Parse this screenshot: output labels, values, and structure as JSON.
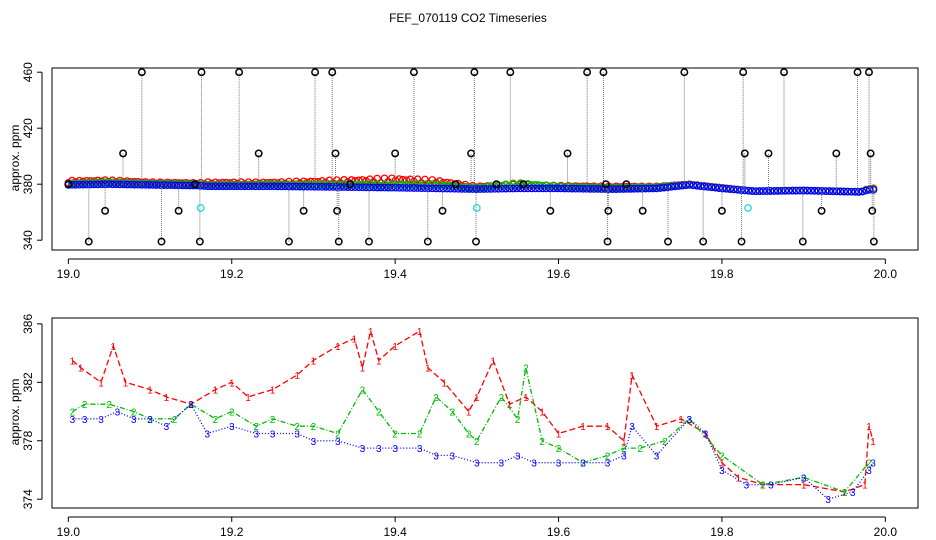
{
  "title": "FEF_070119  CO2 Timeseries",
  "colors": {
    "s1": "#ff0000",
    "s2": "#00bb00",
    "s3": "#0000ff",
    "outlier": "#000000",
    "flag": "#33dddd",
    "stem": "#777777"
  },
  "chart_data": [
    {
      "type": "scatter",
      "name": "top-panel",
      "ylabel": "approx. ppm",
      "xlim": [
        18.98,
        20.04
      ],
      "ylim": [
        333,
        463
      ],
      "xticks": [
        19.0,
        19.2,
        19.4,
        19.6,
        19.8,
        20.0
      ],
      "xtick_labels": [
        "19.0",
        "19.2",
        "19.4",
        "19.6",
        "19.8",
        "20.0"
      ],
      "yticks": [
        340,
        380,
        420,
        460
      ],
      "ytick_labels": [
        "340",
        "380",
        "420",
        "460"
      ],
      "baseline": {
        "x": [
          19.0,
          19.05,
          19.1,
          19.16,
          19.17,
          19.25,
          19.33,
          19.4,
          19.45,
          19.5,
          19.55,
          19.6,
          19.66,
          19.67,
          19.72,
          19.76,
          19.8,
          19.83,
          19.84,
          19.9,
          19.97,
          19.98
        ],
        "y3": [
          379.5,
          380,
          379.5,
          379,
          378.5,
          378.5,
          378,
          377.5,
          377,
          376.5,
          377,
          377,
          376.5,
          376.5,
          377,
          379.5,
          377,
          375.5,
          375,
          375.5,
          374.5,
          376
        ],
        "d1": [
          3,
          3,
          2,
          2,
          3,
          3,
          5,
          7,
          6,
          2,
          3,
          2,
          2,
          2,
          1.5,
          0.5,
          0.5,
          0,
          0,
          0,
          0,
          1
        ],
        "d2": [
          1,
          1.5,
          1,
          1,
          1,
          1.5,
          2,
          2.5,
          3,
          1,
          4,
          1.5,
          1,
          1,
          1,
          0.3,
          0.3,
          0,
          0,
          0,
          0,
          0.5
        ]
      },
      "outliers": {
        "x": [
          19.0,
          19.025,
          19.045,
          19.067,
          19.09,
          19.114,
          19.135,
          19.155,
          19.161,
          19.163,
          19.209,
          19.233,
          19.27,
          19.288,
          19.302,
          19.323,
          19.327,
          19.329,
          19.331,
          19.345,
          19.368,
          19.4,
          19.423,
          19.44,
          19.458,
          19.474,
          19.493,
          19.497,
          19.499,
          19.524,
          19.541,
          19.557,
          19.59,
          19.611,
          19.635,
          19.655,
          19.658,
          19.66,
          19.661,
          19.683,
          19.703,
          19.734,
          19.754,
          19.777,
          19.8,
          19.824,
          19.826,
          19.828,
          19.857,
          19.876,
          19.899,
          19.922,
          19.94,
          19.966,
          19.98,
          19.982,
          19.984,
          19.986
        ],
        "y": [
          380,
          339,
          361,
          402,
          460,
          339,
          361,
          380,
          339,
          460,
          460,
          402,
          339,
          361,
          460,
          460,
          402,
          361,
          339,
          380,
          339,
          402,
          460,
          339,
          361,
          380,
          402,
          460,
          339,
          380,
          460,
          380,
          361,
          402,
          460,
          460,
          380,
          339,
          361,
          380,
          361,
          339,
          460,
          339,
          361,
          339,
          460,
          402,
          402,
          460,
          339,
          361,
          402,
          460,
          460,
          402,
          361,
          339
        ]
      },
      "flagged": {
        "x": [
          19.162,
          19.5,
          19.832
        ],
        "y": [
          363,
          363,
          363
        ]
      }
    },
    {
      "type": "line",
      "name": "bottom-panel",
      "ylabel": "approx. ppm",
      "xlim": [
        18.98,
        20.04
      ],
      "ylim": [
        373.4,
        386.4
      ],
      "xticks": [
        19.0,
        19.2,
        19.4,
        19.6,
        19.8,
        20.0
      ],
      "xtick_labels": [
        "19.0",
        "19.2",
        "19.4",
        "19.6",
        "19.8",
        "20.0"
      ],
      "yticks": [
        374,
        378,
        382,
        386
      ],
      "ytick_labels": [
        "374",
        "378",
        "382",
        "386"
      ],
      "series": [
        {
          "name": "1",
          "label": "1",
          "x": [
            19.005,
            19.015,
            19.04,
            19.055,
            19.07,
            19.1,
            19.12,
            19.15,
            19.18,
            19.2,
            19.22,
            19.25,
            19.28,
            19.3,
            19.33,
            19.35,
            19.36,
            19.37,
            19.38,
            19.4,
            19.43,
            19.44,
            19.46,
            19.49,
            19.5,
            19.52,
            19.54,
            19.56,
            19.58,
            19.6,
            19.63,
            19.66,
            19.68,
            19.69,
            19.72,
            19.75,
            19.78,
            19.8,
            19.82,
            19.85,
            19.9,
            19.95,
            19.975,
            19.98,
            19.985
          ],
          "y": [
            383.5,
            383,
            382,
            384.5,
            382,
            381.5,
            381,
            380.5,
            381.5,
            382,
            381,
            381.5,
            382.5,
            383.5,
            384.5,
            385,
            383,
            385.5,
            383.5,
            384.5,
            385.5,
            383,
            382,
            380,
            381,
            383.5,
            380.5,
            381,
            380,
            378.5,
            379,
            379,
            378,
            382.5,
            379,
            379.5,
            378.5,
            376.5,
            375.5,
            375,
            375,
            374.5,
            375,
            379,
            378
          ]
        },
        {
          "name": "2",
          "label": "2",
          "x": [
            19.005,
            19.02,
            19.05,
            19.08,
            19.1,
            19.13,
            19.15,
            19.18,
            19.2,
            19.23,
            19.25,
            19.28,
            19.3,
            19.33,
            19.36,
            19.38,
            19.4,
            19.43,
            19.45,
            19.47,
            19.49,
            19.5,
            19.53,
            19.55,
            19.56,
            19.58,
            19.6,
            19.63,
            19.66,
            19.68,
            19.7,
            19.73,
            19.76,
            19.8,
            19.85,
            19.9,
            19.95,
            19.98
          ],
          "y": [
            380,
            380.5,
            380.5,
            380,
            379.5,
            379.5,
            380.5,
            379.5,
            380,
            379,
            379.5,
            379,
            379,
            378.5,
            381.5,
            380,
            378.5,
            378.5,
            381,
            380,
            378.5,
            378,
            381,
            379.5,
            383,
            378,
            377.5,
            376.5,
            377,
            377.5,
            377.5,
            378,
            379.5,
            377,
            375,
            375.5,
            374.5,
            376.5
          ]
        },
        {
          "name": "3",
          "label": "3",
          "x": [
            19.005,
            19.02,
            19.04,
            19.06,
            19.08,
            19.1,
            19.12,
            19.15,
            19.17,
            19.2,
            19.23,
            19.25,
            19.28,
            19.3,
            19.33,
            19.36,
            19.38,
            19.4,
            19.43,
            19.45,
            19.47,
            19.5,
            19.53,
            19.55,
            19.57,
            19.6,
            19.63,
            19.66,
            19.68,
            19.69,
            19.72,
            19.76,
            19.78,
            19.8,
            19.83,
            19.86,
            19.9,
            19.93,
            19.96,
            19.98,
            19.985
          ],
          "y": [
            379.5,
            379.5,
            379.5,
            380,
            379.5,
            379.5,
            379,
            380.5,
            378.5,
            379,
            378.5,
            378.5,
            378.5,
            378,
            378,
            377.5,
            377.5,
            377.5,
            377.5,
            377,
            377,
            376.5,
            376.5,
            377,
            376.5,
            376.5,
            376.5,
            376.5,
            377,
            379,
            377,
            379.5,
            378.5,
            376,
            375,
            375,
            375.5,
            374,
            374.5,
            376,
            376.5
          ]
        }
      ]
    }
  ]
}
